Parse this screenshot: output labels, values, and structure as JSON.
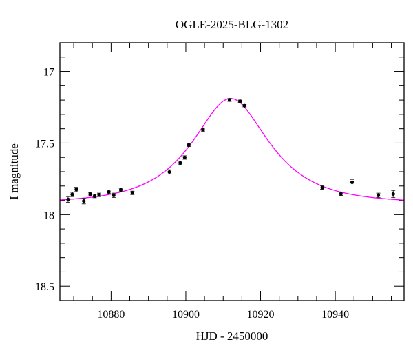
{
  "chart_data": {
    "type": "scatter",
    "title": "OGLE-2025-BLG-1302",
    "xlabel": "HJD - 2450000",
    "ylabel": "I magnitude",
    "xlim": [
      10866.3,
      10958.4
    ],
    "ylim": [
      18.6,
      16.8
    ],
    "y_inverted": true,
    "x_ticks": [
      10880,
      10900,
      10920,
      10940
    ],
    "x_tick_labels": [
      "10880",
      "10900",
      "10920",
      "10940"
    ],
    "y_ticks": [
      17,
      17.5,
      18,
      18.5
    ],
    "y_tick_labels": [
      "17",
      "17.5",
      "18",
      "18.5"
    ],
    "grid": false,
    "point_color": "#000000",
    "model_color": "#ff00ff",
    "points": [
      {
        "x": 10868.5,
        "y": 17.894,
        "err": 0.02
      },
      {
        "x": 10869.6,
        "y": 17.859,
        "err": 0.015
      },
      {
        "x": 10870.7,
        "y": 17.824,
        "err": 0.015
      },
      {
        "x": 10872.7,
        "y": 17.905,
        "err": 0.02
      },
      {
        "x": 10874.4,
        "y": 17.857,
        "err": 0.012
      },
      {
        "x": 10875.6,
        "y": 17.87,
        "err": 0.012
      },
      {
        "x": 10876.8,
        "y": 17.862,
        "err": 0.012
      },
      {
        "x": 10879.4,
        "y": 17.841,
        "err": 0.012
      },
      {
        "x": 10880.7,
        "y": 17.865,
        "err": 0.015
      },
      {
        "x": 10882.6,
        "y": 17.827,
        "err": 0.012
      },
      {
        "x": 10885.7,
        "y": 17.848,
        "err": 0.012
      },
      {
        "x": 10895.6,
        "y": 17.702,
        "err": 0.015
      },
      {
        "x": 10898.5,
        "y": 17.639,
        "err": 0.012
      },
      {
        "x": 10899.7,
        "y": 17.601,
        "err": 0.012
      },
      {
        "x": 10900.8,
        "y": 17.514,
        "err": 0.01
      },
      {
        "x": 10904.6,
        "y": 17.407,
        "err": 0.01
      },
      {
        "x": 10911.7,
        "y": 17.199,
        "err": 0.01
      },
      {
        "x": 10914.5,
        "y": 17.208,
        "err": 0.008
      },
      {
        "x": 10915.7,
        "y": 17.239,
        "err": 0.008
      },
      {
        "x": 10936.5,
        "y": 17.811,
        "err": 0.012
      },
      {
        "x": 10941.5,
        "y": 17.854,
        "err": 0.012
      },
      {
        "x": 10944.5,
        "y": 17.774,
        "err": 0.02
      },
      {
        "x": 10951.5,
        "y": 17.865,
        "err": 0.015
      },
      {
        "x": 10955.5,
        "y": 17.856,
        "err": 0.025
      }
    ],
    "model": {
      "type": "PSPL",
      "t0": 10912.0,
      "u0": 0.57,
      "tE": 16.6,
      "baseline": 17.92
    }
  }
}
